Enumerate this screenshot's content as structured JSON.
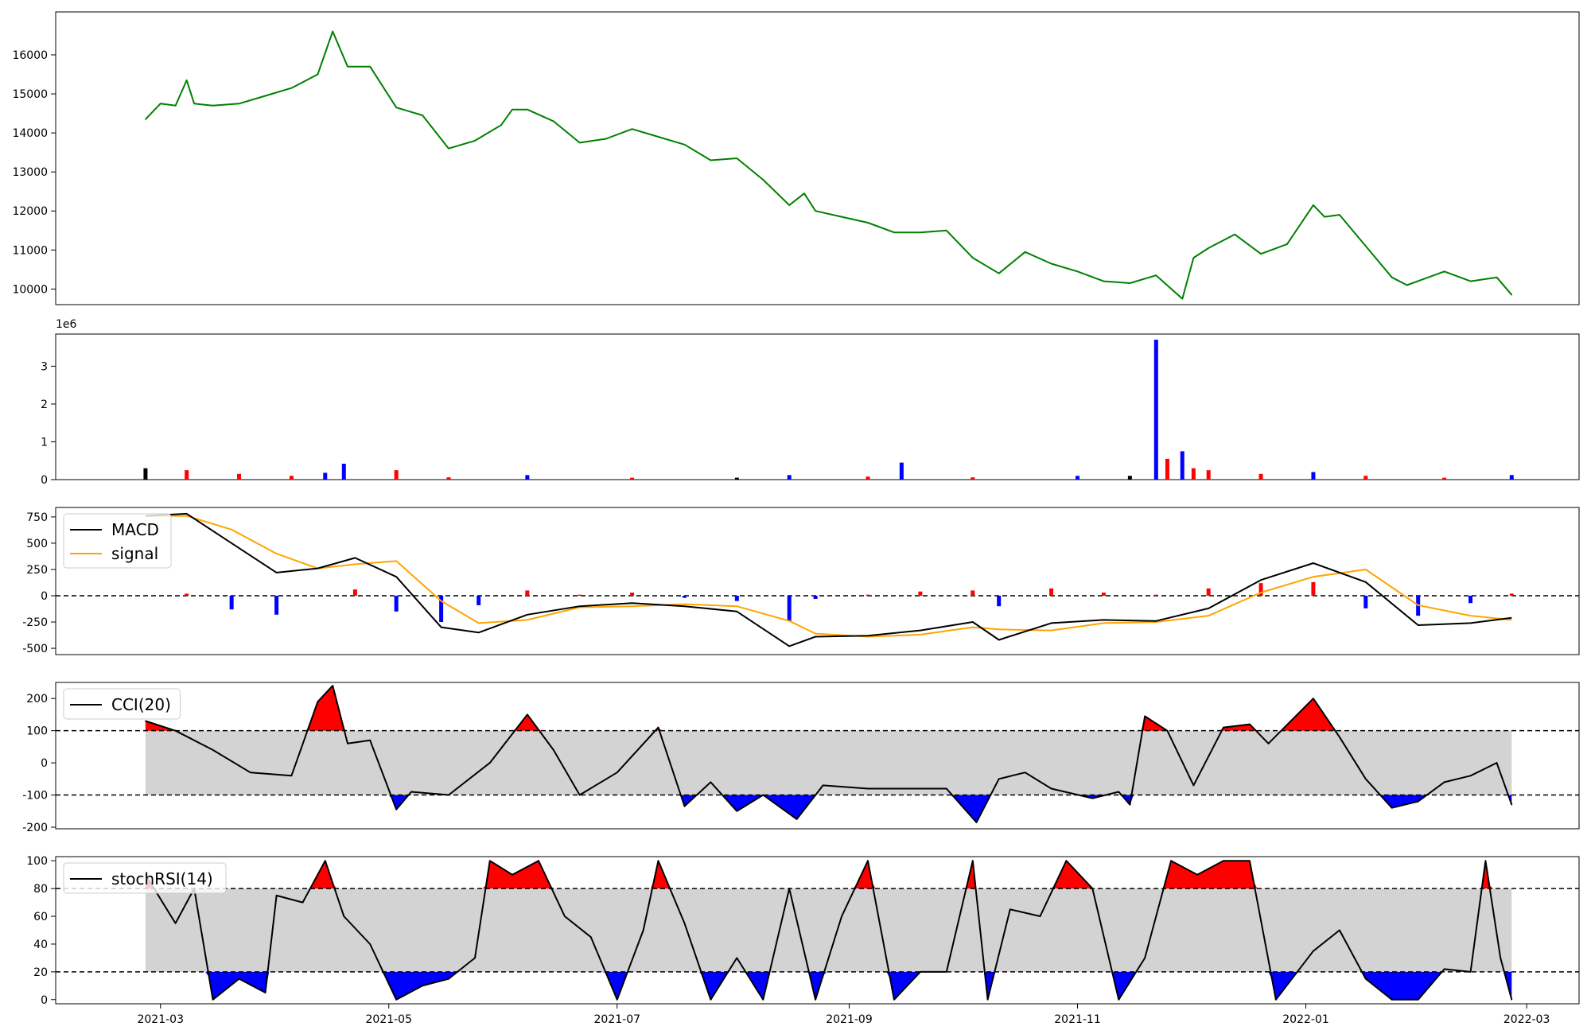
{
  "chart_data": [
    {
      "type": "line",
      "panel": "price",
      "yticks": [
        10000,
        11000,
        12000,
        13000,
        14000,
        15000,
        16000
      ],
      "ylim": [
        9600,
        17100
      ],
      "colors": {
        "line": "#008000"
      },
      "series": [
        {
          "x": [
            "2021-02-25",
            "2021-03-01",
            "2021-03-05",
            "2021-03-08",
            "2021-03-10",
            "2021-03-15",
            "2021-03-22",
            "2021-03-29",
            "2021-04-05",
            "2021-04-12",
            "2021-04-16",
            "2021-04-20",
            "2021-04-26",
            "2021-05-03",
            "2021-05-10",
            "2021-05-17",
            "2021-05-24",
            "2021-05-31",
            "2021-06-03",
            "2021-06-07",
            "2021-06-14",
            "2021-06-21",
            "2021-06-28",
            "2021-07-05",
            "2021-07-12",
            "2021-07-19",
            "2021-07-26",
            "2021-08-02",
            "2021-08-09",
            "2021-08-16",
            "2021-08-20",
            "2021-08-23",
            "2021-08-30",
            "2021-09-06",
            "2021-09-13",
            "2021-09-20",
            "2021-09-27",
            "2021-10-04",
            "2021-10-11",
            "2021-10-18",
            "2021-10-25",
            "2021-11-01",
            "2021-11-08",
            "2021-11-15",
            "2021-11-22",
            "2021-11-29",
            "2021-12-02",
            "2021-12-06",
            "2021-12-13",
            "2021-12-20",
            "2021-12-27",
            "2022-01-03",
            "2022-01-06",
            "2022-01-10",
            "2022-01-17",
            "2022-01-24",
            "2022-01-28",
            "2022-02-07",
            "2022-02-14",
            "2022-02-21",
            "2022-02-25"
          ],
          "values": [
            14350,
            14750,
            14700,
            15350,
            14750,
            14700,
            14750,
            14950,
            15150,
            15500,
            16600,
            15700,
            15700,
            14650,
            14450,
            13600,
            13800,
            14200,
            14600,
            14600,
            14300,
            13750,
            13850,
            14100,
            13900,
            13700,
            13300,
            13350,
            12800,
            12150,
            12450,
            12000,
            11850,
            11700,
            11450,
            11450,
            11500,
            10800,
            10400,
            10950,
            10650,
            10450,
            10200,
            10150,
            10350,
            9750,
            10800,
            11050,
            11400,
            10900,
            11150,
            12150,
            11850,
            11900,
            11100,
            10300,
            10100,
            10450,
            10200,
            10300,
            9850
          ]
        }
      ]
    },
    {
      "type": "bar",
      "panel": "volume",
      "yticks": [
        0,
        1,
        2,
        3
      ],
      "ylim": [
        0,
        3.85
      ],
      "scale_label": "1e6",
      "colors": {
        "up": "#ff0000",
        "down": "#0000ff",
        "flat": "#000000"
      },
      "series": [
        {
          "x": [
            "2021-02-25",
            "2021-03-08",
            "2021-03-22",
            "2021-04-05",
            "2021-04-14",
            "2021-04-19",
            "2021-05-03",
            "2021-05-17",
            "2021-06-07",
            "2021-07-05",
            "2021-08-02",
            "2021-08-16",
            "2021-09-06",
            "2021-09-15",
            "2021-10-04",
            "2021-11-01",
            "2021-11-15",
            "2021-11-22",
            "2021-11-25",
            "2021-11-29",
            "2021-12-02",
            "2021-12-06",
            "2021-12-20",
            "2022-01-03",
            "2022-01-17",
            "2022-02-07",
            "2022-02-25"
          ],
          "values": [
            0.3,
            0.25,
            0.15,
            0.1,
            0.18,
            0.42,
            0.25,
            0.06,
            0.12,
            0.05,
            0.05,
            0.12,
            0.08,
            0.45,
            0.06,
            0.1,
            0.1,
            3.7,
            0.55,
            0.75,
            0.3,
            0.25,
            0.15,
            0.2,
            0.1,
            0.05,
            0.12
          ]
        }
      ]
    },
    {
      "type": "line",
      "panel": "macd",
      "yticks": [
        -500,
        -250,
        0,
        250,
        500,
        750
      ],
      "ylim": [
        -560,
        840
      ],
      "legend": [
        "MACD",
        "signal"
      ],
      "legend_position": "upper-left",
      "colors": {
        "macd": "#000000",
        "signal": "#ffa500",
        "hist_pos": "#ff0000",
        "hist_neg": "#0000ff"
      },
      "series": [
        {
          "name": "MACD",
          "x": [
            "2021-02-25",
            "2021-03-08",
            "2021-03-20",
            "2021-04-01",
            "2021-04-12",
            "2021-04-22",
            "2021-05-03",
            "2021-05-15",
            "2021-05-25",
            "2021-06-07",
            "2021-06-21",
            "2021-07-05",
            "2021-07-19",
            "2021-08-02",
            "2021-08-16",
            "2021-08-23",
            "2021-09-06",
            "2021-09-20",
            "2021-10-04",
            "2021-10-11",
            "2021-10-25",
            "2021-11-08",
            "2021-11-22",
            "2021-12-06",
            "2021-12-20",
            "2022-01-03",
            "2022-01-17",
            "2022-01-31",
            "2022-02-14",
            "2022-02-25"
          ],
          "values": [
            760,
            780,
            500,
            220,
            260,
            360,
            180,
            -300,
            -350,
            -180,
            -100,
            -70,
            -100,
            -150,
            -480,
            -390,
            -380,
            -330,
            -250,
            -420,
            -260,
            -230,
            -240,
            -120,
            150,
            310,
            130,
            -280,
            -260,
            -210
          ]
        },
        {
          "name": "signal",
          "x": [
            "2021-02-25",
            "2021-03-08",
            "2021-03-20",
            "2021-04-01",
            "2021-04-12",
            "2021-04-22",
            "2021-05-03",
            "2021-05-15",
            "2021-05-25",
            "2021-06-07",
            "2021-06-21",
            "2021-07-05",
            "2021-07-19",
            "2021-08-02",
            "2021-08-16",
            "2021-08-23",
            "2021-09-06",
            "2021-09-20",
            "2021-10-04",
            "2021-10-11",
            "2021-10-25",
            "2021-11-08",
            "2021-11-22",
            "2021-12-06",
            "2021-12-20",
            "2022-01-03",
            "2022-01-17",
            "2022-01-31",
            "2022-02-14",
            "2022-02-25"
          ],
          "values": [
            760,
            760,
            630,
            400,
            260,
            300,
            330,
            -50,
            -260,
            -230,
            -110,
            -100,
            -80,
            -100,
            -240,
            -360,
            -390,
            -370,
            -300,
            -320,
            -330,
            -260,
            -250,
            -190,
            30,
            180,
            250,
            -90,
            -190,
            -230
          ]
        }
      ]
    },
    {
      "type": "line",
      "panel": "cci",
      "yticks": [
        -200,
        -100,
        0,
        100,
        200
      ],
      "ylim": [
        -205,
        250
      ],
      "thresholds": [
        100,
        -100
      ],
      "legend": [
        "CCI(20)"
      ],
      "legend_position": "upper-left",
      "colors": {
        "line": "#000000",
        "band": "#d3d3d3",
        "over": "#ff0000",
        "under": "#0000ff"
      },
      "series": [
        {
          "name": "CCI(20)",
          "x": [
            "2021-02-25",
            "2021-03-05",
            "2021-03-15",
            "2021-03-25",
            "2021-04-05",
            "2021-04-12",
            "2021-04-16",
            "2021-04-20",
            "2021-04-26",
            "2021-05-03",
            "2021-05-07",
            "2021-05-17",
            "2021-05-28",
            "2021-06-07",
            "2021-06-14",
            "2021-06-21",
            "2021-07-01",
            "2021-07-12",
            "2021-07-19",
            "2021-07-26",
            "2021-08-02",
            "2021-08-09",
            "2021-08-18",
            "2021-08-25",
            "2021-09-06",
            "2021-09-16",
            "2021-09-27",
            "2021-10-05",
            "2021-10-11",
            "2021-10-18",
            "2021-10-25",
            "2021-11-05",
            "2021-11-12",
            "2021-11-15",
            "2021-11-19",
            "2021-11-25",
            "2021-12-02",
            "2021-12-10",
            "2021-12-17",
            "2021-12-22",
            "2022-01-03",
            "2022-01-10",
            "2022-01-17",
            "2022-01-24",
            "2022-01-31",
            "2022-02-07",
            "2022-02-14",
            "2022-02-21",
            "2022-02-25"
          ],
          "values": [
            130,
            100,
            40,
            -30,
            -40,
            190,
            240,
            60,
            70,
            -145,
            -90,
            -100,
            0,
            150,
            40,
            -100,
            -30,
            110,
            -135,
            -60,
            -150,
            -100,
            -175,
            -70,
            -80,
            -80,
            -80,
            -185,
            -50,
            -30,
            -80,
            -110,
            -90,
            -130,
            145,
            100,
            -70,
            110,
            120,
            60,
            200,
            80,
            -50,
            -140,
            -120,
            -60,
            -40,
            0,
            -130
          ]
        }
      ]
    },
    {
      "type": "line",
      "panel": "stochrsi",
      "yticks": [
        0,
        20,
        40,
        60,
        80,
        100
      ],
      "ylim": [
        -3,
        103
      ],
      "thresholds": [
        80,
        20
      ],
      "legend": [
        "stochRSI(14)"
      ],
      "legend_position": "upper-left",
      "colors": {
        "line": "#000000",
        "band": "#d3d3d3",
        "over": "#ff0000",
        "under": "#0000ff"
      },
      "xticks": [
        "2021-03",
        "2021-05",
        "2021-07",
        "2021-09",
        "2021-11",
        "2022-01",
        "2022-03"
      ],
      "series": [
        {
          "name": "stochRSI(14)",
          "x": [
            "2021-02-25",
            "2021-03-05",
            "2021-03-10",
            "2021-03-15",
            "2021-03-22",
            "2021-03-29",
            "2021-04-01",
            "2021-04-08",
            "2021-04-14",
            "2021-04-19",
            "2021-04-26",
            "2021-05-03",
            "2021-05-10",
            "2021-05-17",
            "2021-05-24",
            "2021-05-28",
            "2021-06-03",
            "2021-06-10",
            "2021-06-17",
            "2021-06-24",
            "2021-07-01",
            "2021-07-08",
            "2021-07-12",
            "2021-07-19",
            "2021-07-26",
            "2021-08-02",
            "2021-08-09",
            "2021-08-16",
            "2021-08-23",
            "2021-08-30",
            "2021-09-06",
            "2021-09-13",
            "2021-09-20",
            "2021-09-27",
            "2021-10-04",
            "2021-10-08",
            "2021-10-14",
            "2021-10-22",
            "2021-10-29",
            "2021-11-05",
            "2021-11-12",
            "2021-11-19",
            "2021-11-26",
            "2021-12-03",
            "2021-12-10",
            "2021-12-17",
            "2021-12-24",
            "2022-01-03",
            "2022-01-10",
            "2022-01-17",
            "2022-01-24",
            "2022-01-31",
            "2022-02-07",
            "2022-02-14",
            "2022-02-18",
            "2022-02-22",
            "2022-02-25"
          ],
          "values": [
            90,
            55,
            80,
            0,
            15,
            5,
            75,
            70,
            100,
            60,
            40,
            0,
            10,
            15,
            30,
            100,
            90,
            100,
            60,
            45,
            0,
            50,
            100,
            55,
            0,
            30,
            0,
            80,
            0,
            60,
            100,
            0,
            20,
            20,
            100,
            0,
            65,
            60,
            100,
            80,
            0,
            30,
            100,
            90,
            100,
            100,
            0,
            35,
            50,
            15,
            0,
            0,
            22,
            20,
            100,
            30,
            0
          ]
        }
      ]
    }
  ]
}
